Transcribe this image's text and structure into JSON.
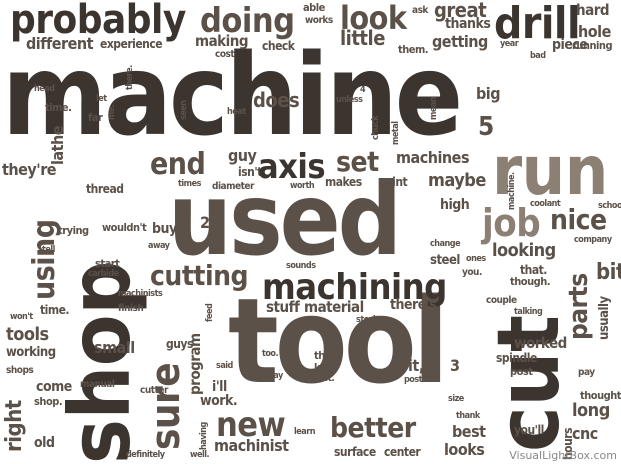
{
  "words": {
    "probably": "probably",
    "doing": "doing",
    "look": "look",
    "drill": "drill",
    "machine": "machine",
    "used": "used",
    "tool": "tool",
    "shop": "shop",
    "cut": "cut",
    "run": "run",
    "sure": "sure",
    "machining": "machining",
    "cutting": "cutting",
    "axis": "axis",
    "set": "set",
    "end": "end",
    "better": "better",
    "parts": "parts",
    "job": "job",
    "nice": "nice",
    "using": "using",
    "new": "new",
    "right": "right",
    "machines": "machines",
    "tools": "tools",
    "small": "small",
    "does": "does",
    "maybe": "maybe",
    "little": "little",
    "making": "making",
    "different": "different",
    "experience": "experience",
    "getting": "getting",
    "great": "great",
    "hole": "hole",
    "hard": "hard",
    "big": "big",
    "lathe": "lathe",
    "five": "5",
    "theyre": "they're",
    "guy": "guy",
    "isnt": "isn't",
    "high": "high",
    "looking": "looking",
    "bit": "bit",
    "machinist": "machinist",
    "material": "material",
    "stuff": "stuff",
    "theres": "there's",
    "worked": "worked",
    "usually": "usually",
    "spindle": "spindle",
    "long": "long",
    "cnc": "cnc",
    "best": "best",
    "looks": "looks",
    "surface": "surface",
    "center": "center",
    "youll": "you'll",
    "old": "old",
    "come": "come",
    "shop_": "shop.",
    "working": "working",
    "time": "time.",
    "trying": "trying",
    "wouldnt": "wouldn't",
    "buy": "buy",
    "start": "start",
    "thread": "thread",
    "program": "program",
    "guys": "guys",
    "ill": "i'll",
    "work": "work.",
    "it": "it,",
    "three": "3",
    "makes": "makes",
    "point": "point",
    "steel": "steel",
    "school": "school",
    "company": "company",
    "able": "able",
    "works": "works",
    "ask": "ask",
    "thanks": "thanks",
    "year": "year",
    "bad": "bad",
    "piece": "piece",
    "running": "running",
    "them": "them.",
    "check": "check",
    "cost": "cost",
    "head": "head",
    "let": "let",
    "far": "far",
    "timew": "time.",
    "seen": "seen",
    "heat": "heat",
    "unless": "unless",
    "four": "4",
    "chuck": "chuck",
    "metal": "metal",
    "mean": "mean",
    "times": "times",
    "diameter": "diameter",
    "worth": "worth",
    "two": "2",
    "away": "away",
    "tell": "tell",
    "carbide": "carbide",
    "finish": "finish",
    "machinists": "machinists",
    "wont": "won't",
    "shops": "shops",
    "manual": "manual",
    "cutter": "cutter",
    "said": "said",
    "day": "day",
    "too": "too.",
    "this": "this.",
    "kind": "kind",
    "out": "out.",
    "post": "post",
    "size": "size",
    "thank": "thank",
    "thought": "thought",
    "pay": "pay",
    "talking": "talking",
    "couple": "couple",
    "feed": "feed",
    "stock": "stock",
    "sounds": "sounds",
    "change": "change",
    "ones": "ones",
    "you": "you.",
    "that": "that.",
    "though": "though.",
    "coolant": "coolant",
    "machinew": "machine.",
    "there": "there.",
    "me": "me.",
    "having": "having",
    "well": "well.",
    "definitely": "definitely",
    "learn": "learn",
    "hours": "hours"
  },
  "watermark": "VisualLightBox.com",
  "colors": {
    "dark": "#3b342f",
    "medium": "#5b5149",
    "light": "#8c7f73",
    "tan": "#a8998b"
  }
}
